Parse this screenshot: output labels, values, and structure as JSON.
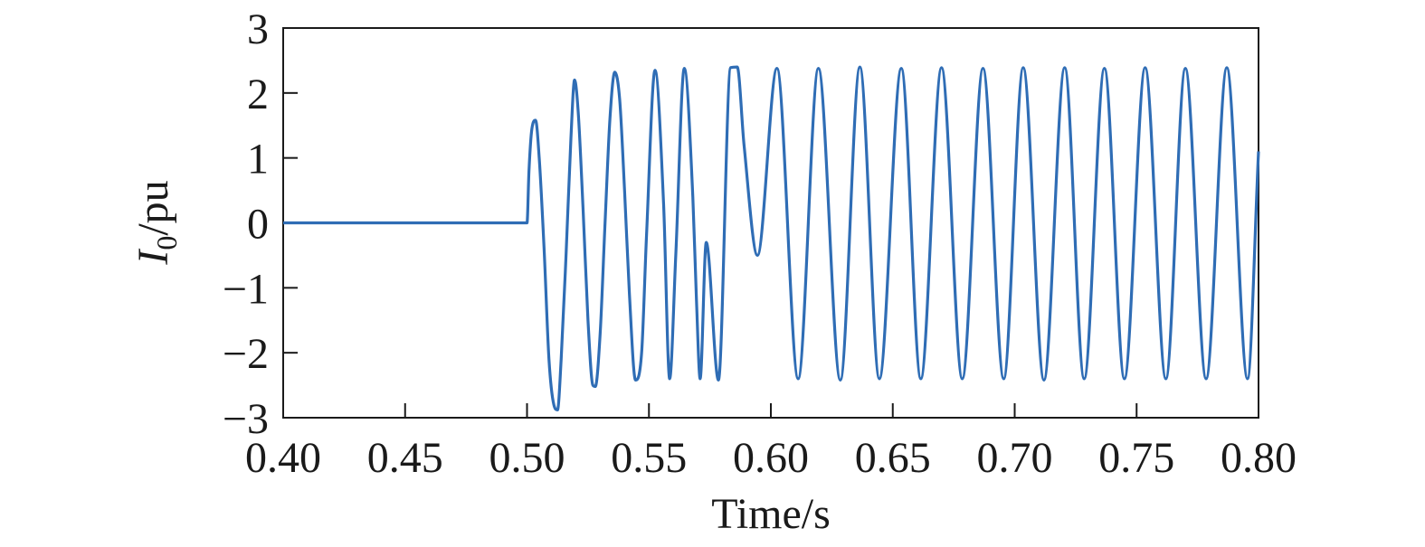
{
  "chart_data": {
    "type": "line",
    "title": "",
    "xlabel": "Time/s",
    "ylabel": {
      "symbol": "I",
      "subscript": "0",
      "unit": "/pu"
    },
    "xlim": [
      0.4,
      0.8
    ],
    "ylim": [
      -3,
      3
    ],
    "x_ticks": [
      "0.40",
      "0.45",
      "0.50",
      "0.55",
      "0.60",
      "0.65",
      "0.70",
      "0.75",
      "0.80"
    ],
    "y_ticks": [
      "3",
      "2",
      "1",
      "0",
      "−1",
      "−2",
      "−3"
    ],
    "grid": false,
    "legend": "none",
    "line_color": "#2f6db5",
    "series": [
      {
        "x": [
          0.4,
          0.45,
          0.5,
          0.5008,
          0.502,
          0.5035,
          0.505,
          0.507,
          0.509,
          0.511,
          0.5125,
          0.514,
          0.516,
          0.518,
          0.5195,
          0.521,
          0.523,
          0.525,
          0.527,
          0.528,
          0.53,
          0.532,
          0.534,
          0.536,
          0.538,
          0.54,
          0.542,
          0.5445,
          0.547,
          0.549,
          0.5525,
          0.556,
          0.5585,
          0.561,
          0.5645,
          0.568,
          0.5695,
          0.571,
          0.5735,
          0.5785,
          0.5835,
          0.5862,
          0.589,
          0.5945,
          0.6025,
          0.6112,
          0.6195,
          0.6285,
          0.6365,
          0.6445,
          0.6535,
          0.6615,
          0.67,
          0.6785,
          0.687,
          0.6955,
          0.7035,
          0.712,
          0.7205,
          0.7285,
          0.7368,
          0.745,
          0.7535,
          0.762,
          0.77,
          0.7785,
          0.787,
          0.7955,
          0.8
        ],
        "y": [
          0,
          0,
          0,
          0.8,
          1.45,
          1.58,
          1.0,
          -0.4,
          -2.1,
          -2.8,
          -2.88,
          -2.1,
          -0.5,
          1.3,
          2.2,
          1.7,
          0.2,
          -1.5,
          -2.5,
          -2.52,
          -1.7,
          0.0,
          1.6,
          2.32,
          1.9,
          0.5,
          -1.1,
          -2.42,
          -2.0,
          -0.2,
          2.35,
          0.3,
          -2.4,
          -0.5,
          2.38,
          0.4,
          -1.2,
          -2.4,
          -0.3,
          -2.42,
          2.39,
          2.4,
          1.2,
          -0.5,
          2.38,
          -2.4,
          2.38,
          -2.42,
          2.4,
          -2.4,
          2.38,
          -2.4,
          2.39,
          -2.4,
          2.38,
          -2.4,
          2.39,
          -2.42,
          2.39,
          -2.4,
          2.38,
          -2.4,
          2.39,
          -2.4,
          2.38,
          -2.4,
          2.39,
          -2.4,
          1.1
        ]
      }
    ]
  }
}
